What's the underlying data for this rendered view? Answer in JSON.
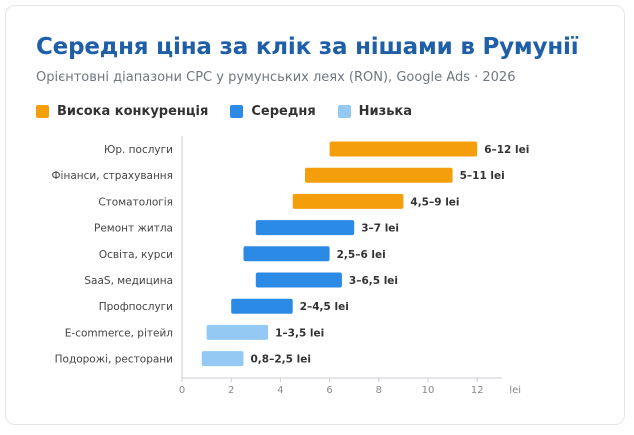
{
  "title": "Середня ціна за клік за нішами в Румунії",
  "subtitle": "Орієнтовні діапазони CPC у румунських леях (RON), Google Ads · 2026",
  "legend": [
    {
      "label": "Висока конкуренція",
      "color": "#f59e0b"
    },
    {
      "label": "Середня",
      "color": "#2b8ae6"
    },
    {
      "label": "Низька",
      "color": "#93c9f2"
    }
  ],
  "chart_data": {
    "type": "bar",
    "orientation": "horizontal-range",
    "xlabel": "lei",
    "xlim": [
      0,
      13
    ],
    "xticks": [
      0,
      2,
      4,
      6,
      8,
      10,
      12
    ],
    "categories": [
      {
        "name": "Юр. послуги",
        "min": 6,
        "max": 12,
        "label": "6–12 lei",
        "level": "Висока конкуренція"
      },
      {
        "name": "Фінанси, страхування",
        "min": 5,
        "max": 11,
        "label": "5–11 lei",
        "level": "Висока конкуренція"
      },
      {
        "name": "Стоматологія",
        "min": 4.5,
        "max": 9,
        "label": "4,5–9 lei",
        "level": "Висока конкуренція"
      },
      {
        "name": "Ремонт житла",
        "min": 3,
        "max": 7,
        "label": "3–7 lei",
        "level": "Середня"
      },
      {
        "name": "Освіта, курси",
        "min": 2.5,
        "max": 6,
        "label": "2,5–6 lei",
        "level": "Середня"
      },
      {
        "name": "SaaS, медицина",
        "min": 3,
        "max": 6.5,
        "label": "3–6,5 lei",
        "level": "Середня"
      },
      {
        "name": "Профпослуги",
        "min": 2,
        "max": 4.5,
        "label": "2–4,5 lei",
        "level": "Середня"
      },
      {
        "name": "E-commerce, рітейл",
        "min": 1,
        "max": 3.5,
        "label": "1–3,5 lei",
        "level": "Низька"
      },
      {
        "name": "Подорожі, ресторани",
        "min": 0.8,
        "max": 2.5,
        "label": "0,8–2,5 lei",
        "level": "Низька"
      }
    ]
  }
}
